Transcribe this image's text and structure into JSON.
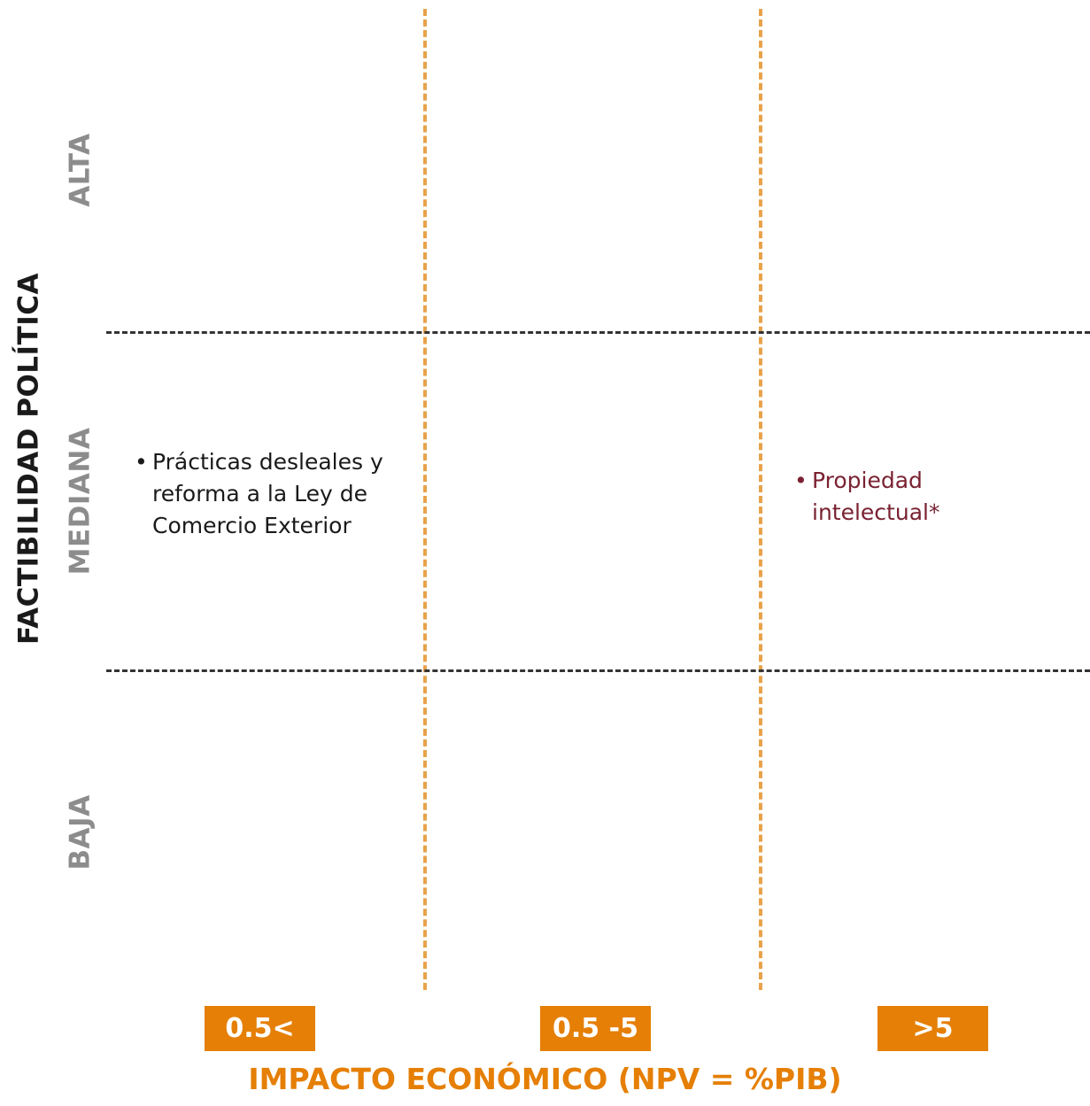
{
  "y_axis": {
    "title": "FACTIBILIDAD POLÍTICA",
    "levels": [
      "ALTA",
      "MEDIANA",
      "BAJA"
    ]
  },
  "x_axis": {
    "title": "IMPACTO ECONÓMICO (NPV = %PIB)",
    "categories": [
      "0.5<",
      "0.5 -5",
      ">5"
    ]
  },
  "notes": [
    {
      "bullet": "•",
      "text": "Prácticas desleales y reforma a la Ley de Comercio Exterior",
      "row": "MEDIANA",
      "column": "0.5<",
      "color": "#1a1a1a"
    },
    {
      "bullet": "•",
      "text": "Propiedad intelectual*",
      "row": "MEDIANA",
      "column": ">5",
      "color": "#7a2232"
    }
  ],
  "colors": {
    "accent": "#e57f05",
    "vertical_dashes": "#e8a24a",
    "horizontal_dashes": "#333333",
    "level_labels": "#8c8c8c"
  }
}
